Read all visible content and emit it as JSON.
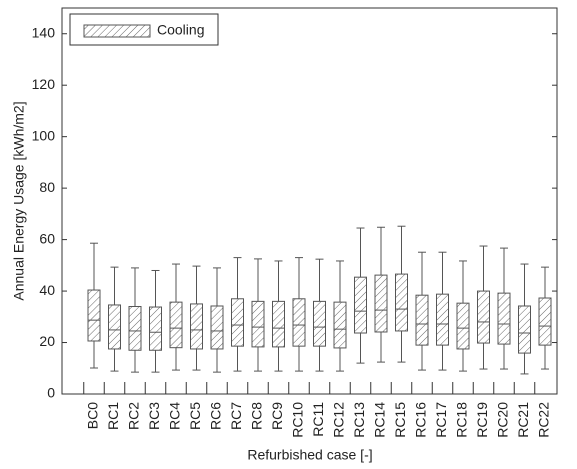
{
  "chart_data": {
    "type": "box",
    "xlabel": "Refurbished case [-]",
    "ylabel": "Annual Energy Usage [kWh/m2]",
    "categories": [
      "BC0",
      "RC1",
      "RC2",
      "RC3",
      "RC4",
      "RC5",
      "RC6",
      "RC7",
      "RC8",
      "RC9",
      "RC10",
      "RC11",
      "RC12",
      "RC13",
      "RC14",
      "RC15",
      "RC16",
      "RC17",
      "RC18",
      "RC19",
      "RC20",
      "RC21",
      "RC22"
    ],
    "series": [
      {
        "name": "Cooling",
        "color": "#555555",
        "whisker_high": [
          58.6,
          49.3,
          49.0,
          48.0,
          50.5,
          49.7,
          49.0,
          53.0,
          52.5,
          51.7,
          53.0,
          52.4,
          51.7,
          64.5,
          64.8,
          65.2,
          55.1,
          55.1,
          51.7,
          57.5,
          56.7,
          50.5,
          49.3
        ],
        "q3": [
          40.4,
          34.6,
          34.0,
          33.8,
          35.7,
          35.0,
          34.2,
          37.0,
          36.0,
          36.0,
          37.0,
          36.0,
          35.7,
          45.4,
          46.2,
          46.6,
          38.4,
          38.8,
          35.3,
          40.0,
          39.2,
          34.2,
          37.3
        ],
        "median": [
          28.7,
          24.9,
          24.5,
          24.0,
          25.6,
          24.9,
          24.5,
          26.8,
          26.0,
          25.6,
          26.8,
          26.0,
          25.2,
          32.2,
          32.6,
          33.0,
          27.2,
          27.2,
          25.6,
          28.0,
          27.2,
          23.7,
          26.4
        ],
        "q1": [
          20.6,
          17.5,
          17.0,
          17.0,
          18.0,
          17.5,
          17.5,
          18.6,
          18.3,
          18.3,
          18.6,
          18.6,
          17.9,
          23.7,
          24.1,
          24.5,
          19.0,
          19.0,
          17.5,
          19.8,
          19.4,
          15.9,
          19.0
        ],
        "whisker_low": [
          10.1,
          8.9,
          8.5,
          8.5,
          9.3,
          9.3,
          8.5,
          8.9,
          8.9,
          8.9,
          8.9,
          8.9,
          8.9,
          12.0,
          12.4,
          12.4,
          9.3,
          9.3,
          8.9,
          9.7,
          9.7,
          7.8,
          9.7
        ]
      }
    ],
    "ylim": [
      0,
      150
    ],
    "yticks": [
      0,
      20,
      40,
      60,
      80,
      100,
      120,
      140
    ],
    "grid": false,
    "legend": "upper left"
  }
}
